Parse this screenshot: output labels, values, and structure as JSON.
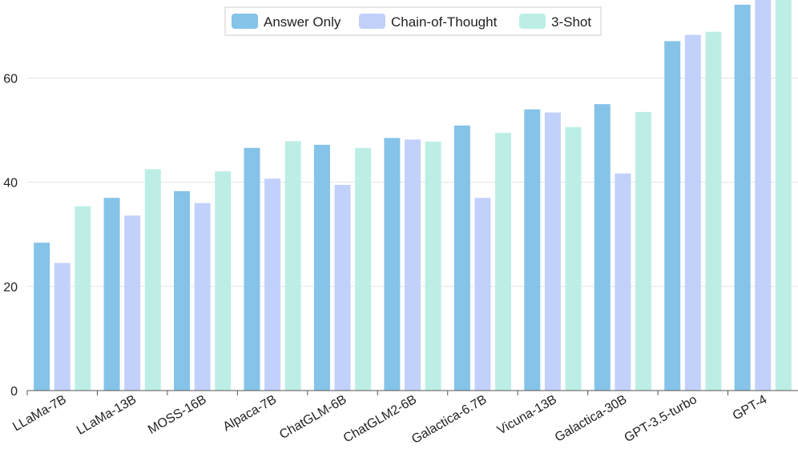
{
  "chart_data": {
    "type": "bar",
    "title": "",
    "xlabel": "",
    "ylabel": "",
    "ylim": [
      0,
      75
    ],
    "yticks": [
      0,
      20,
      40,
      60
    ],
    "grid": true,
    "legend_position": "top-center",
    "categories": [
      "LLaMa-7B",
      "LLaMa-13B",
      "MOSS-16B",
      "Alpaca-7B",
      "ChatGLM-6B",
      "ChatGLM2-6B",
      "Galactica-6.7B",
      "Vicuna-13B",
      "Galactica-30B",
      "GPT-3.5-turbo",
      "GPT-4"
    ],
    "series": [
      {
        "name": "Answer Only",
        "color": "#85c3e8",
        "values": [
          28.4,
          37.0,
          38.3,
          46.6,
          47.2,
          48.5,
          50.9,
          54.0,
          55.0,
          67.1,
          74.1
        ]
      },
      {
        "name": "Chain-of-Thought",
        "color": "#c2d1fb",
        "values": [
          24.5,
          33.6,
          36.0,
          40.7,
          39.5,
          48.2,
          37.0,
          53.4,
          41.7,
          68.3,
          81.0
        ]
      },
      {
        "name": "3-Shot",
        "color": "#bdeee6",
        "values": [
          35.4,
          42.5,
          42.1,
          47.9,
          46.6,
          47.8,
          49.5,
          50.6,
          53.5,
          68.9,
          80.0
        ]
      }
    ]
  }
}
